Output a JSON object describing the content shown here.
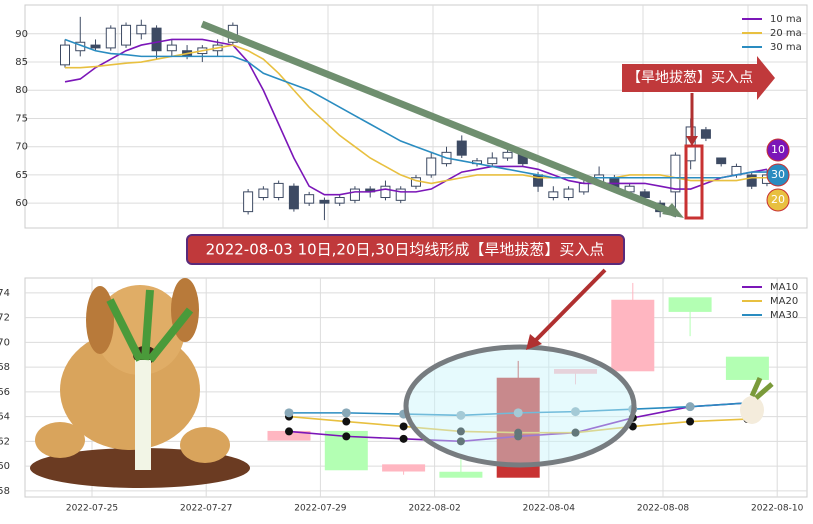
{
  "chart_data": [
    {
      "type": "candlestick",
      "ylim": [
        55.6,
        95.1
      ],
      "yticks": [
        60,
        65,
        70,
        75,
        80,
        85,
        90
      ],
      "grid": true,
      "legend": "upper right",
      "up_color": "#ffffff",
      "down_color": "#3d4a63",
      "candles": {
        "open": [
          84.5,
          87,
          88,
          87.5,
          88,
          90,
          91,
          87,
          87,
          86.5,
          87,
          88.5,
          58.5,
          61,
          61,
          63,
          60,
          60.5,
          60,
          60.5,
          62.5,
          61,
          60.5,
          63,
          65,
          67,
          71,
          67,
          67,
          68,
          69,
          65,
          61,
          61,
          62,
          63.5,
          64.5,
          62,
          62,
          60,
          62,
          67.5,
          73,
          68,
          65,
          65,
          63.5
        ],
        "close": [
          88,
          88.5,
          87.5,
          91,
          91.5,
          91.5,
          87,
          88,
          86,
          87.5,
          88,
          91.5,
          62,
          62.5,
          63.5,
          59,
          61.5,
          60,
          61,
          62.5,
          62,
          63,
          62.5,
          64.5,
          68,
          69,
          68.5,
          67.5,
          68,
          69,
          67,
          63,
          62,
          62.5,
          63.5,
          65,
          62.5,
          63,
          61,
          58.5,
          68.5,
          73.5,
          71.5,
          67,
          66.5,
          63,
          65
        ],
        "high": [
          89,
          93,
          89,
          91.5,
          92,
          92.5,
          91.5,
          89,
          88,
          88,
          89,
          92,
          62.5,
          63,
          64,
          63.5,
          62,
          61,
          61.5,
          63,
          63,
          64,
          63,
          65,
          69,
          70,
          72,
          68,
          69,
          70,
          69.5,
          65.5,
          63,
          63,
          64,
          66.5,
          65,
          63.5,
          62.5,
          60.5,
          69,
          75,
          73.5,
          68,
          67,
          65.5,
          66
        ],
        "low": [
          84,
          86,
          87,
          87,
          87.5,
          89,
          85.5,
          86,
          85.5,
          85,
          86,
          88,
          58,
          60.5,
          60.5,
          58.5,
          59.5,
          57,
          59.5,
          60,
          61,
          60.5,
          60,
          62.5,
          64.5,
          66.5,
          68,
          66.5,
          66.5,
          67.5,
          66.5,
          62,
          60.5,
          60.5,
          61.5,
          63,
          62,
          61.5,
          60.5,
          57.5,
          57.5,
          66,
          71,
          66.5,
          64.5,
          62.5,
          63
        ]
      },
      "series": [
        {
          "name": "10 ma",
          "color": "#7b16b8",
          "values": [
            81.5,
            82,
            84,
            85.5,
            87,
            88,
            88.5,
            89,
            89,
            89,
            88.5,
            88,
            85,
            80,
            74,
            68,
            63,
            61.5,
            61.5,
            62,
            62,
            62.5,
            62,
            62,
            62.5,
            64,
            65.5,
            66,
            66.5,
            66.5,
            66.5,
            66,
            65,
            64,
            63.5,
            63.5,
            63.5,
            63.5,
            63.5,
            63,
            62.5,
            62.5,
            63.5,
            64.5,
            65,
            65.5,
            66
          ]
        },
        {
          "name": "20 ma",
          "color": "#e8c040",
          "values": [
            84,
            84,
            84.2,
            84.5,
            84.8,
            85,
            85.5,
            86,
            86.5,
            87,
            87.5,
            88,
            87,
            85.5,
            83,
            80,
            77,
            74.5,
            72,
            70,
            68,
            66.5,
            65,
            64,
            63.5,
            64,
            64.5,
            65,
            65,
            65,
            65,
            64.5,
            64.5,
            64.5,
            64.5,
            64.5,
            64.5,
            65,
            65,
            65,
            64.5,
            64,
            64,
            64,
            64,
            64.5,
            64.5
          ]
        },
        {
          "name": "30 ma",
          "color": "#2a8cc0",
          "values": [
            89,
            88,
            87,
            86.5,
            86.3,
            86,
            86,
            86,
            86,
            86,
            86,
            86,
            85,
            83,
            82,
            81,
            80,
            78.5,
            77,
            75.5,
            74,
            72.5,
            71,
            70,
            69,
            68,
            67.5,
            67,
            66.5,
            66,
            65.5,
            65,
            64.5,
            64.5,
            64.5,
            64.5,
            64.5,
            64.5,
            64.5,
            64.5,
            64.5,
            64.5,
            64.5,
            64.5,
            65,
            65.5,
            65.5
          ]
        }
      ],
      "annotation": "【旱地拔葱】买入点",
      "badges": [
        {
          "text": "10",
          "color": "#7b16b8"
        },
        {
          "text": "30",
          "color": "#2a8cc0"
        },
        {
          "text": "20",
          "color": "#e8c040"
        }
      ]
    },
    {
      "type": "candlestick",
      "ylim": [
        57.5,
        75.2
      ],
      "yticks": [
        58,
        60,
        62,
        64,
        66,
        68,
        70,
        72,
        74
      ],
      "grid": true,
      "legend": "upper right",
      "xticks": [
        "2022-07-25",
        "2022-07-27",
        "2022-07-29",
        "2022-08-02",
        "2022-08-04",
        "2022-08-08",
        "2022-08-10"
      ],
      "candles": {
        "open": [
          62.1,
          62.8,
          59.6,
          59.5,
          59.1,
          67.5,
          67.7,
          73.6,
          68.8
        ],
        "close": [
          62.8,
          59.7,
          60.1,
          59.1,
          67.1,
          67.8,
          73.4,
          72.5,
          67.0
        ],
        "high": [
          62.8,
          62.8,
          60.1,
          60.9,
          68.5,
          67.8,
          74.8,
          73.6,
          68.8
        ],
        "low": [
          62.1,
          59.7,
          59.3,
          59.1,
          59.1,
          66.6,
          67.7,
          70.5,
          67.0
        ],
        "colors": [
          "#ffb6c1",
          "#b3ffb3",
          "#ffb6c1",
          "#b3ffb3",
          "#c83232",
          "#ffb6c1",
          "#ffb6c1",
          "#b3ffb3",
          "#b3ffb3"
        ]
      },
      "series": [
        {
          "name": "MA10",
          "color": "#7b16b8",
          "values": [
            62.8,
            62.4,
            62.2,
            62.0,
            62.4,
            62.7,
            63.9,
            64.8,
            65.1
          ]
        },
        {
          "name": "MA20",
          "color": "#e8c040",
          "values": [
            64.0,
            63.6,
            63.2,
            62.8,
            62.7,
            62.7,
            63.2,
            63.6,
            63.8
          ]
        },
        {
          "name": "MA30",
          "color": "#2a8cc0",
          "values": [
            64.3,
            64.3,
            64.2,
            64.1,
            64.3,
            64.4,
            64.6,
            64.8,
            65.1
          ]
        }
      ],
      "annotation": "2022-08-03 10日,20日,30日均线形成【旱地拔葱】买入点"
    }
  ]
}
